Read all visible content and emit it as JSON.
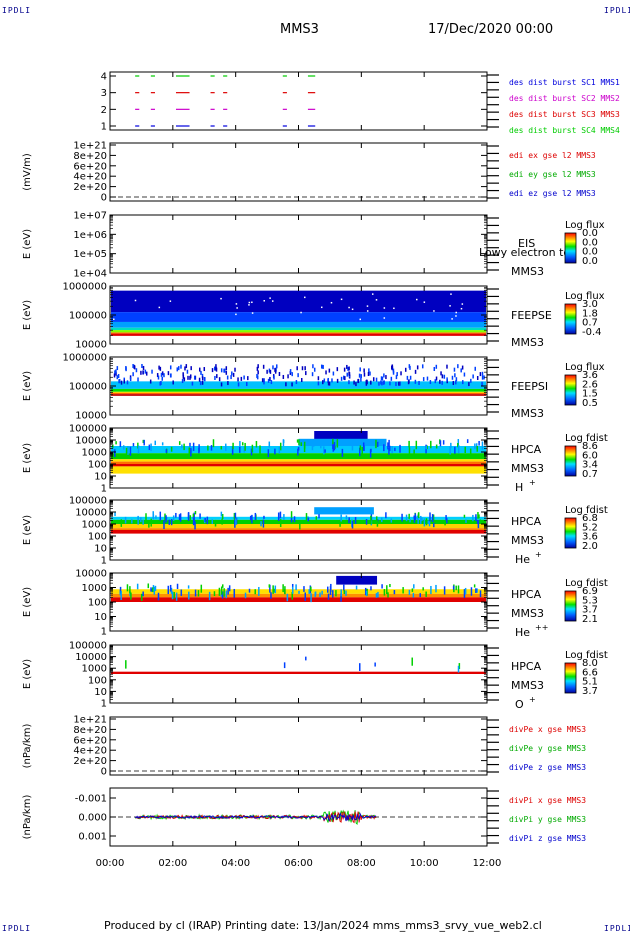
{
  "corners": {
    "tl": "IPDLI",
    "tr": "IPDLI",
    "bl": "IPDLI",
    "br": "IPDLI"
  },
  "header": {
    "spacecraft": "MMS3",
    "date": "17/Dec/2020 00:00"
  },
  "footer": {
    "text": "Produced by cl (IRAP)   Printing date: 13/Jan/2024   mms_mms3_srvy_vue_web2.cl"
  },
  "chart_data": [
    {
      "type": "scatter",
      "panel": "burst",
      "yticks": [
        "4",
        "3",
        "2",
        "1"
      ],
      "legend": [
        {
          "label": "des dist burst SC1 MMS1",
          "color": "#0000dd"
        },
        {
          "label": "des dist burst SC2 MMS2",
          "color": "#cc00cc"
        },
        {
          "label": "des dist burst SC3 MMS3",
          "color": "#dd0000"
        },
        {
          "label": "des dist burst SC4 MMS4",
          "color": "#00cc00"
        }
      ],
      "burst_intervals_h": [
        [
          0.8,
          0.9
        ],
        [
          1.3,
          1.4
        ],
        [
          2.1,
          2.5
        ],
        [
          3.2,
          3.3
        ],
        [
          3.6,
          3.7
        ],
        [
          5.5,
          5.6
        ],
        [
          6.3,
          6.5
        ]
      ]
    },
    {
      "type": "line",
      "panel": "edi",
      "ylabel": "(mV/m)",
      "yticks": [
        "1e+21",
        "8e+20",
        "6e+20",
        "4e+20",
        "2e+20",
        "0"
      ],
      "legend": [
        {
          "label": "edi ex gse l2 MMS3",
          "color": "#dd0000"
        },
        {
          "label": "edi ey gse l2 MMS3",
          "color": "#00aa00"
        },
        {
          "label": "edi ez gse l2 MMS3",
          "color": "#0000cc"
        }
      ]
    },
    {
      "type": "heatmap",
      "panel": "eis",
      "ylabel": "E (eV)",
      "yticks": [
        "1e+07",
        "1e+06",
        "1e+05",
        "1e+04"
      ],
      "instrument": "EIS",
      "sc": "MMS3",
      "overlay": "Lowy electron to",
      "cbar_title": "Log flux",
      "cbar_ticks": [
        "0.0",
        "0.0",
        "0.0",
        "0.0"
      ]
    },
    {
      "type": "heatmap",
      "panel": "feepse",
      "ylabel": "E (eV)",
      "yticks": [
        "1000000",
        "100000",
        "10000"
      ],
      "instrument": "FEEPSE",
      "sc": "MMS3",
      "cbar_title": "Log flux",
      "cbar_ticks": [
        "3.0",
        "1.8",
        "0.7",
        "-0.4"
      ]
    },
    {
      "type": "heatmap",
      "panel": "feepsi",
      "ylabel": "E (eV)",
      "yticks": [
        "1000000",
        "100000",
        "10000"
      ],
      "instrument": "FEEPSI",
      "sc": "MMS3",
      "cbar_title": "Log flux",
      "cbar_ticks": [
        "3.6",
        "2.6",
        "1.5",
        "0.5"
      ]
    },
    {
      "type": "heatmap",
      "panel": "hpca-h",
      "ylabel": "E (eV)",
      "yticks": [
        "100000",
        "10000",
        "1000",
        "100",
        "10",
        "1"
      ],
      "instrument": "HPCA",
      "sc": "MMS3",
      "species": "H",
      "charge": "+",
      "cbar_title": "Log fdist",
      "cbar_ticks": [
        "8.6",
        "6.0",
        "3.4",
        "0.7"
      ]
    },
    {
      "type": "heatmap",
      "panel": "hpca-he",
      "ylabel": "E (eV)",
      "yticks": [
        "100000",
        "10000",
        "1000",
        "100",
        "10",
        "1"
      ],
      "instrument": "HPCA",
      "sc": "MMS3",
      "species": "He",
      "charge": "+",
      "cbar_title": "Log fdist",
      "cbar_ticks": [
        "6.8",
        "5.2",
        "3.6",
        "2.0"
      ]
    },
    {
      "type": "heatmap",
      "panel": "hpca-hepp",
      "ylabel": "E (eV)",
      "yticks": [
        "10000",
        "1000",
        "100",
        "10",
        "1"
      ],
      "instrument": "HPCA",
      "sc": "MMS3",
      "species": "He",
      "charge": "++",
      "cbar_title": "Log fdist",
      "cbar_ticks": [
        "6.9",
        "5.3",
        "3.7",
        "2.1"
      ]
    },
    {
      "type": "heatmap",
      "panel": "hpca-o",
      "ylabel": "E (eV)",
      "yticks": [
        "100000",
        "10000",
        "1000",
        "100",
        "10",
        "1"
      ],
      "instrument": "HPCA",
      "sc": "MMS3",
      "species": "O",
      "charge": "+",
      "cbar_title": "Log fdist",
      "cbar_ticks": [
        "8.0",
        "6.6",
        "5.1",
        "3.7"
      ]
    },
    {
      "type": "line",
      "panel": "divpe",
      "ylabel": "(nPa/km)",
      "yticks": [
        "1e+21",
        "8e+20",
        "6e+20",
        "4e+20",
        "2e+20",
        "0"
      ],
      "legend": [
        {
          "label": "divPe x gse MMS3",
          "color": "#dd0000"
        },
        {
          "label": "divPe y gse MMS3",
          "color": "#00aa00"
        },
        {
          "label": "divPe z gse MMS3",
          "color": "#0000cc"
        }
      ]
    },
    {
      "type": "line",
      "panel": "divpi",
      "ylabel": "(nPa/km)",
      "yticks": [
        "0.001",
        "0.000",
        "-0.001"
      ],
      "ylim": [
        -0.0015,
        0.0015
      ],
      "data_range_h": [
        0.8,
        8.5
      ],
      "legend": [
        {
          "label": "divPi x gse MMS3",
          "color": "#dd0000"
        },
        {
          "label": "divPi y gse MMS3",
          "color": "#00aa00"
        },
        {
          "label": "divPi z gse MMS3",
          "color": "#0000cc"
        }
      ]
    }
  ],
  "time_axis": {
    "ticks": [
      "00:00",
      "02:00",
      "04:00",
      "06:00",
      "08:00",
      "10:00",
      "12:00"
    ],
    "range_h": [
      0,
      12
    ]
  }
}
